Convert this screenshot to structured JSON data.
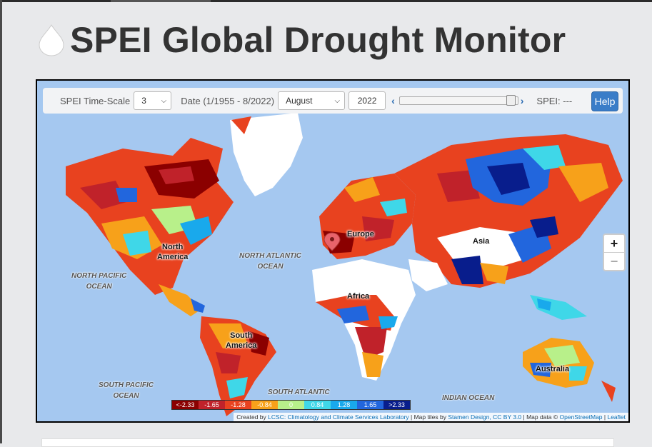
{
  "page": {
    "title": "SPEI Global Drought Monitor"
  },
  "controls": {
    "timescale_label": "SPEI Time-Scale",
    "timescale_value": "3",
    "date_label": "Date (1/1955 - 8/2022)",
    "month_value": "August",
    "year_value": "2022",
    "spei_readout": "SPEI: ---",
    "help_label": "Help",
    "slider_position": 0.98
  },
  "zoom": {
    "in_label": "+",
    "out_label": "−"
  },
  "map_labels": {
    "north_america": [
      "North",
      "America"
    ],
    "south_america": [
      "South",
      "America"
    ],
    "europe": "Europe",
    "africa": "Africa",
    "asia": "Asia",
    "australia": "Australia",
    "north_atlantic": [
      "NORTH ATLANTIC",
      "OCEAN"
    ],
    "north_pacific": [
      "NORTH PACIFIC",
      "OCEAN"
    ],
    "south_pacific": [
      "SOUTH PACIFIC",
      "OCEAN"
    ],
    "south_atlantic": [
      "SOUTH ATLANTIC",
      "OCEAN"
    ],
    "indian_ocean": "INDIAN OCEAN"
  },
  "legend": [
    {
      "label": "<-2.33",
      "color": "#8b0000"
    },
    {
      "label": "-1.65",
      "color": "#c0222a"
    },
    {
      "label": "-1.28",
      "color": "#e8421f"
    },
    {
      "label": "-0.84",
      "color": "#f7a11a"
    },
    {
      "label": "0",
      "color": "#b8f08a"
    },
    {
      "label": "0.84",
      "color": "#3fd7e8"
    },
    {
      "label": "1.28",
      "color": "#19a9ec"
    },
    {
      "label": "1.65",
      "color": "#2266dd"
    },
    {
      "label": ">2.33",
      "color": "#081d8c"
    }
  ],
  "attribution": {
    "created_by": "Created by",
    "lcsc": "LCSC: Climatology and Climate Services Laboratory",
    "sep1": " | Map tiles by ",
    "stamen": "Stamen Design, CC BY 3.0",
    "sep2": " | Map data © ",
    "osm": "OpenStreetMap",
    "sep3": " | ",
    "leaflet": "Leaflet"
  },
  "colors": {
    "ocean": "#a5c8f0",
    "ice": "#ffffff",
    "help": "#3a7dc8"
  },
  "icons": [
    "water-drop-icon",
    "chevron-down-icon",
    "arrow-left-icon",
    "arrow-right-icon",
    "map-marker-icon"
  ]
}
